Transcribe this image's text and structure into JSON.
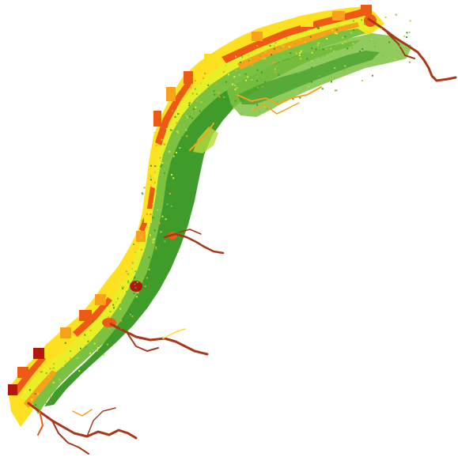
{
  "map": {
    "type": "raster-classified-coastal-strip",
    "legend_visible": false,
    "palette": {
      "very_low": "#3f9b2a",
      "low": "#7cc242",
      "low_mid": "#b5dc3c",
      "mid": "#e7f026",
      "mid_high": "#fde020",
      "high": "#f7a21a",
      "very_high": "#ee5a14",
      "extreme": "#b5160c",
      "river": "#a8381a"
    }
  }
}
